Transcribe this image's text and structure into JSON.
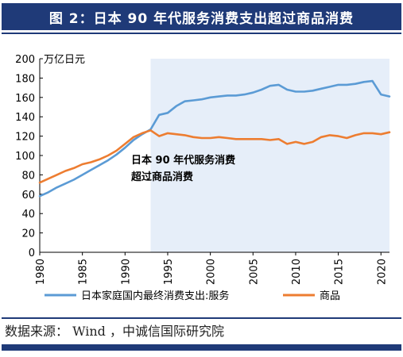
{
  "header": {
    "title": "图 2：日本 90 年代服务消费支出超过商品消费"
  },
  "source_text": "数据来源： Wind ，中诚信国际研究院",
  "chart_data": {
    "type": "line",
    "unit_label": "万亿日元",
    "x_ticks": [
      1980,
      1985,
      1990,
      1995,
      2000,
      2005,
      2010,
      2015,
      2020
    ],
    "y_ticks": [
      0,
      20,
      40,
      60,
      80,
      100,
      120,
      140,
      160,
      180,
      200
    ],
    "xlim": [
      1980,
      2021
    ],
    "ylim": [
      0,
      200
    ],
    "shaded_region": {
      "x_start": 1993,
      "x_end": 2021,
      "color": "#e6eef9"
    },
    "annotation": {
      "lines": [
        "日本 90 年代服务消费",
        "超过商品消费"
      ]
    },
    "series": [
      {
        "name": "日本家庭国内最终消费支出:服务",
        "color": "#5b9bd5",
        "x": [
          1980,
          1981,
          1982,
          1983,
          1984,
          1985,
          1986,
          1987,
          1988,
          1989,
          1990,
          1991,
          1992,
          1993,
          1994,
          1995,
          1996,
          1997,
          1998,
          1999,
          2000,
          2001,
          2002,
          2003,
          2004,
          2005,
          2006,
          2007,
          2008,
          2009,
          2010,
          2011,
          2012,
          2013,
          2014,
          2015,
          2016,
          2017,
          2018,
          2019,
          2020,
          2021
        ],
        "values": [
          58,
          62,
          67,
          71,
          75,
          80,
          85,
          90,
          95,
          101,
          108,
          116,
          122,
          127,
          142,
          144,
          151,
          156,
          157,
          158,
          160,
          161,
          162,
          162,
          163,
          165,
          168,
          172,
          173,
          168,
          166,
          166,
          167,
          169,
          171,
          173,
          173,
          174,
          176,
          177,
          163,
          161
        ]
      },
      {
        "name": "商品",
        "color": "#ed7d31",
        "x": [
          1980,
          1981,
          1982,
          1983,
          1984,
          1985,
          1986,
          1987,
          1988,
          1989,
          1990,
          1991,
          1992,
          1993,
          1994,
          1995,
          1996,
          1997,
          1998,
          1999,
          2000,
          2001,
          2002,
          2003,
          2004,
          2005,
          2006,
          2007,
          2008,
          2009,
          2010,
          2011,
          2012,
          2013,
          2014,
          2015,
          2016,
          2017,
          2018,
          2019,
          2020,
          2021
        ],
        "values": [
          72,
          76,
          80,
          84,
          87,
          91,
          93,
          96,
          100,
          105,
          112,
          119,
          123,
          126,
          120,
          123,
          122,
          121,
          119,
          118,
          118,
          119,
          118,
          117,
          117,
          117,
          117,
          116,
          117,
          112,
          114,
          112,
          114,
          119,
          121,
          120,
          118,
          121,
          123,
          123,
          122,
          124
        ]
      }
    ]
  }
}
